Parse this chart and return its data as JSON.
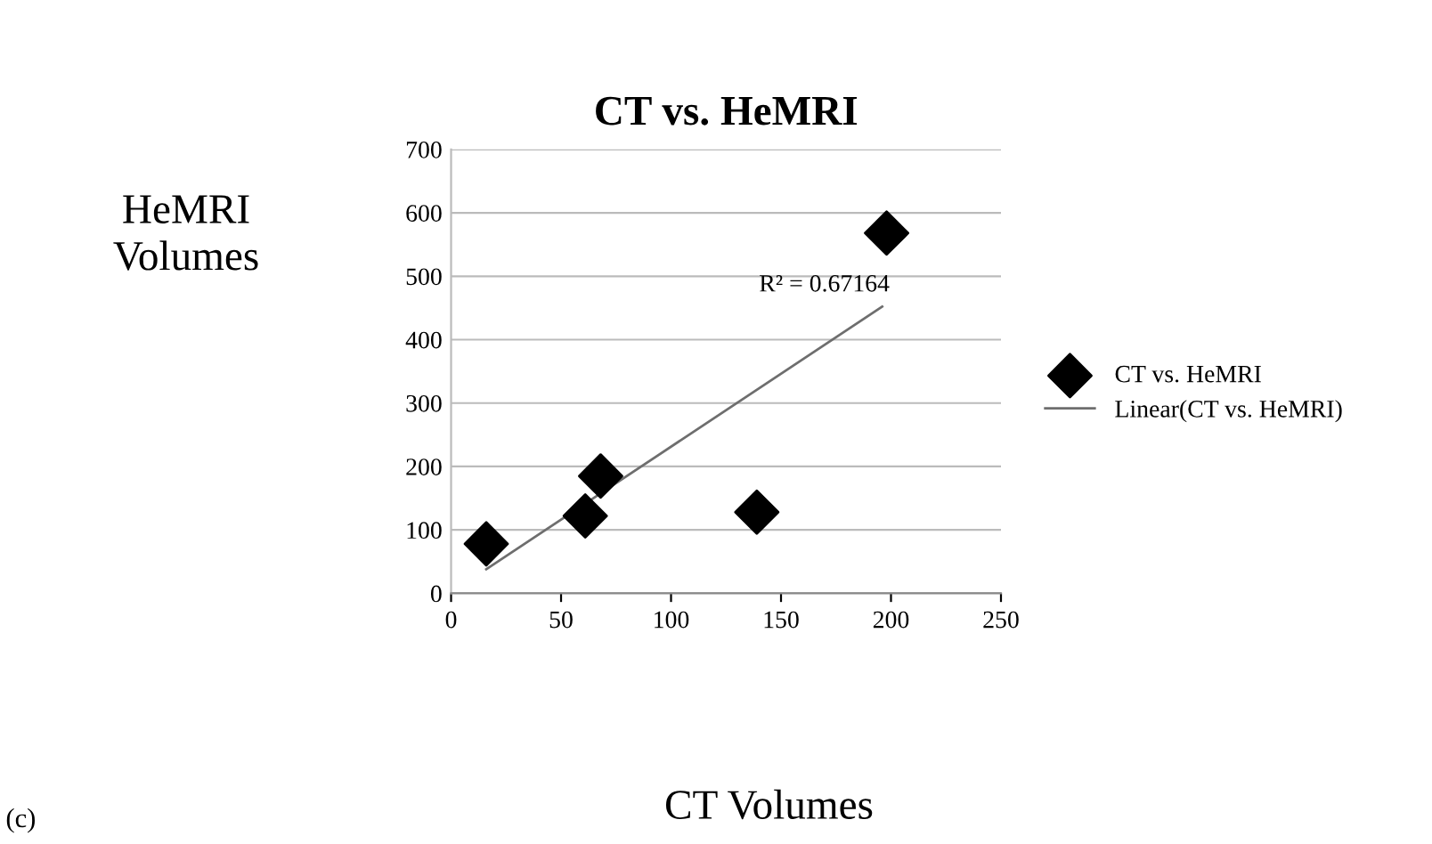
{
  "chart_data": {
    "type": "scatter",
    "title": "CT vs. HeMRI",
    "xlabel": "CT Volumes",
    "ylabel": "HeMRI\nVolumes",
    "series": [
      {
        "name": "CT vs. HeMRI",
        "color": "#000000",
        "marker": "diamond",
        "x": [
          16,
          61,
          68,
          139,
          198
        ],
        "values": [
          78,
          122,
          185,
          128,
          568
        ]
      },
      {
        "name": "Linear(CT vs. HeMRI)",
        "type": "line",
        "color": "#6e6e6e",
        "marker": "none",
        "line_style": "solid",
        "x": [
          16,
          196
        ],
        "values": [
          38,
          452
        ]
      }
    ],
    "annotations": [
      "R² = 0.67164",
      "(c)"
    ],
    "xlim": [
      0,
      250
    ],
    "xticks": [
      0,
      50,
      100,
      150,
      200,
      250
    ],
    "ylim": [
      0,
      700
    ],
    "yticks": [
      0,
      100,
      200,
      300,
      400,
      500,
      600,
      700
    ],
    "grid": "y",
    "legend": "right"
  }
}
